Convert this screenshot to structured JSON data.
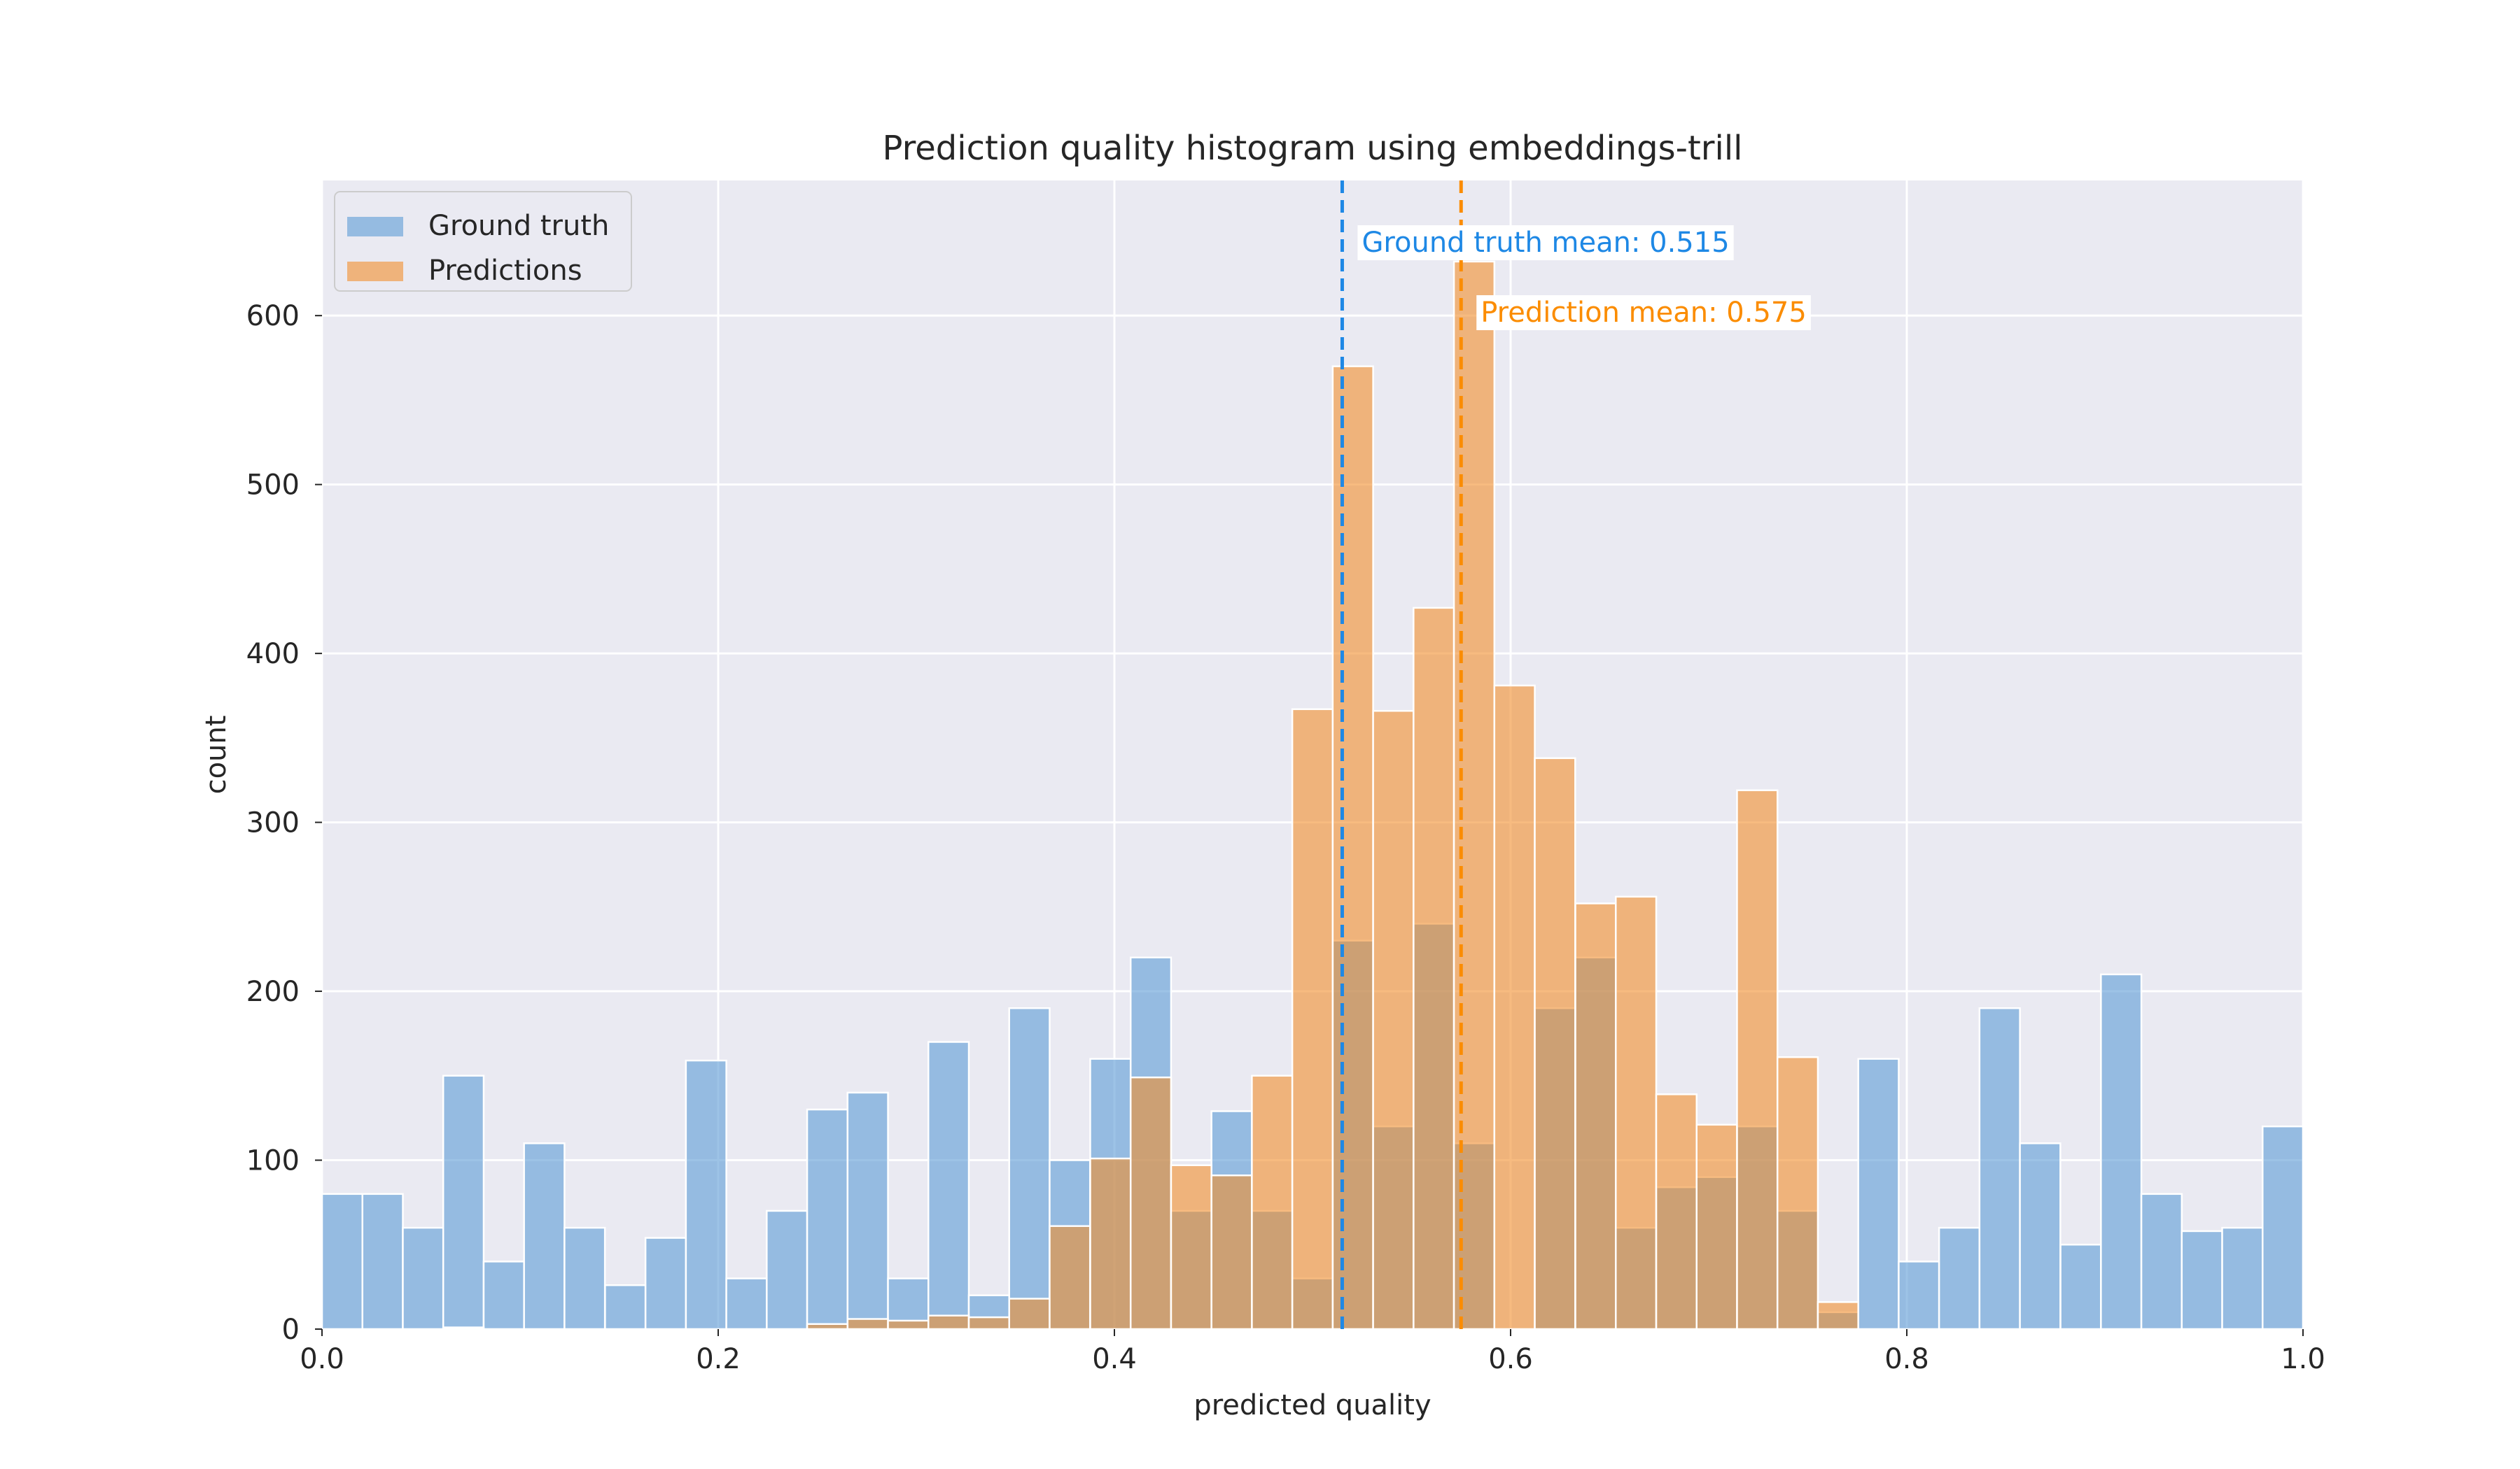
{
  "chart_data": {
    "type": "bar",
    "title": "Prediction quality histogram using embeddings-trill",
    "xlabel": "predicted quality",
    "ylabel": "count",
    "xlim": [
      0.0,
      1.0
    ],
    "ylim": [
      0,
      680
    ],
    "xticks": [
      0.0,
      0.2,
      0.4,
      0.6,
      0.8,
      1.0
    ],
    "xtick_labels": [
      "0.0",
      "0.2",
      "0.4",
      "0.6",
      "0.8",
      "1.0"
    ],
    "yticks": [
      0,
      100,
      200,
      300,
      400,
      500,
      600
    ],
    "ytick_labels": [
      "0",
      "100",
      "200",
      "300",
      "400",
      "500",
      "600"
    ],
    "grid": true,
    "legend_position": "top-left",
    "bin_width": 0.02041,
    "bin_starts": [
      0.0,
      0.0204,
      0.0408,
      0.0612,
      0.0816,
      0.102,
      0.1224,
      0.1429,
      0.1633,
      0.1837,
      0.2041,
      0.2245,
      0.2449,
      0.2653,
      0.2857,
      0.3061,
      0.3265,
      0.3469,
      0.3673,
      0.3878,
      0.4082,
      0.4286,
      0.449,
      0.4694,
      0.4898,
      0.5102,
      0.5306,
      0.551,
      0.5714,
      0.5918,
      0.6122,
      0.6327,
      0.6531,
      0.6735,
      0.6939,
      0.7143,
      0.7347,
      0.7551,
      0.7755,
      0.7959,
      0.8163,
      0.8367,
      0.8571,
      0.8776,
      0.898,
      0.9184,
      0.9388,
      0.9592,
      0.9796
    ],
    "series": [
      {
        "name": "Ground truth",
        "color": "#5b9bd5",
        "values": [
          80,
          80,
          60,
          150,
          40,
          110,
          60,
          26,
          54,
          159,
          30,
          70,
          130,
          140,
          30,
          170,
          20,
          190,
          100,
          160,
          220,
          70,
          129,
          70,
          30,
          230,
          120,
          240,
          110,
          0,
          190,
          220,
          60,
          84,
          90,
          120,
          70,
          10,
          160,
          40,
          60,
          190,
          110,
          50,
          210,
          80,
          58,
          60,
          120
        ]
      },
      {
        "name": "Predictions",
        "color": "#f28e2b",
        "values": [
          0,
          0,
          0,
          1,
          0,
          0,
          0,
          0,
          0,
          0,
          0,
          0,
          3,
          6,
          5,
          8,
          7,
          18,
          61,
          101,
          149,
          97,
          91,
          150,
          367,
          570,
          366,
          427,
          632,
          381,
          338,
          252,
          256,
          139,
          121,
          319,
          161,
          16,
          0,
          0,
          0,
          0,
          0,
          0,
          0,
          0,
          0,
          0,
          0
        ]
      }
    ],
    "reference_lines": [
      {
        "x": 0.515,
        "color": "#1e88e5",
        "label": "Ground truth mean: 0.515"
      },
      {
        "x": 0.575,
        "color": "#fb8c00",
        "label": "Prediction mean: 0.575"
      }
    ]
  }
}
